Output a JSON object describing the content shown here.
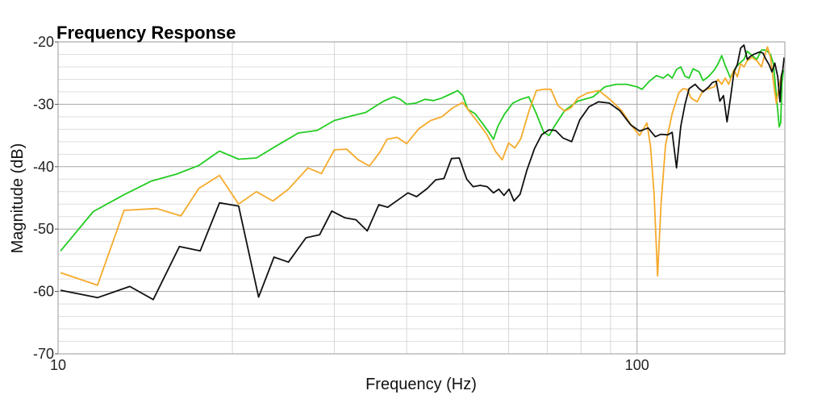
{
  "chart_data": {
    "type": "line",
    "title": "Frequency Response",
    "xlabel": "Frequency (Hz)",
    "ylabel": "Magnitude (dB)",
    "x_scale": "log",
    "xlim": [
      10,
      180
    ],
    "ylim": [
      -70,
      -20
    ],
    "x_ticks": [
      {
        "value": 10,
        "label": "10"
      },
      {
        "value": 100,
        "label": "100"
      }
    ],
    "y_ticks": [
      {
        "value": -20,
        "label": "-20"
      },
      {
        "value": -30,
        "label": "-30"
      },
      {
        "value": -40,
        "label": "-40"
      },
      {
        "value": -50,
        "label": "-50"
      },
      {
        "value": -60,
        "label": "-60"
      },
      {
        "value": -70,
        "label": "-70"
      }
    ],
    "grid": true,
    "series": [
      {
        "color": "#22cc22",
        "points": [
          [
            10.1,
            -53.5
          ],
          [
            11.5,
            -47.2
          ],
          [
            13,
            -44.5
          ],
          [
            14.5,
            -42.3
          ],
          [
            16,
            -41.2
          ],
          [
            17.5,
            -39.8
          ],
          [
            19,
            -37.5
          ],
          [
            20.5,
            -38.8
          ],
          [
            22,
            -38.6
          ],
          [
            24,
            -36.5
          ],
          [
            26,
            -34.6
          ],
          [
            28,
            -34.2
          ],
          [
            30,
            -32.6
          ],
          [
            32,
            -31.9
          ],
          [
            34,
            -31.3
          ],
          [
            35.5,
            -30.2
          ],
          [
            36.5,
            -29.5
          ],
          [
            38,
            -28.8
          ],
          [
            39,
            -29.2
          ],
          [
            40,
            -30.0
          ],
          [
            41.5,
            -29.8
          ],
          [
            43,
            -29.2
          ],
          [
            44.5,
            -29.4
          ],
          [
            46,
            -29.0
          ],
          [
            47.5,
            -28.4
          ],
          [
            49,
            -27.8
          ],
          [
            50,
            -28.6
          ],
          [
            51,
            -30.8
          ],
          [
            52.5,
            -31.5
          ],
          [
            54,
            -33.0
          ],
          [
            55.5,
            -34.5
          ],
          [
            56.5,
            -35.6
          ],
          [
            57.5,
            -33.5
          ],
          [
            59,
            -31.6
          ],
          [
            61,
            -29.8
          ],
          [
            63,
            -29.2
          ],
          [
            65,
            -28.8
          ],
          [
            67,
            -31.5
          ],
          [
            69,
            -34.5
          ],
          [
            70.5,
            -35.0
          ],
          [
            72,
            -33.5
          ],
          [
            75,
            -31.0
          ],
          [
            79,
            -29.5
          ],
          [
            84,
            -28.8
          ],
          [
            88,
            -27.2
          ],
          [
            92,
            -26.8
          ],
          [
            96,
            -26.8
          ],
          [
            100,
            -27.2
          ],
          [
            102,
            -27.6
          ],
          [
            105,
            -26.3
          ],
          [
            108,
            -25.4
          ],
          [
            111,
            -25.8
          ],
          [
            113,
            -25.2
          ],
          [
            115,
            -25.8
          ],
          [
            117,
            -24.4
          ],
          [
            119,
            -24.0
          ],
          [
            121,
            -25.5
          ],
          [
            123,
            -25.8
          ],
          [
            125,
            -24.3
          ],
          [
            128,
            -24.8
          ],
          [
            130,
            -26.2
          ],
          [
            133,
            -25.5
          ],
          [
            136,
            -24.5
          ],
          [
            138,
            -23.5
          ],
          [
            140,
            -22.2
          ],
          [
            142,
            -23.8
          ],
          [
            145,
            -25.8
          ],
          [
            147,
            -24.5
          ],
          [
            150,
            -23.5
          ],
          [
            153,
            -22.8
          ],
          [
            155,
            -21.5
          ],
          [
            158,
            -22.2
          ],
          [
            161,
            -22.8
          ],
          [
            164,
            -21.3
          ],
          [
            167,
            -21.3
          ],
          [
            170,
            -22.0
          ],
          [
            172,
            -23.5
          ],
          [
            174,
            -28.5
          ],
          [
            176,
            -33.6
          ],
          [
            177,
            -33.0
          ],
          [
            178,
            -26.5
          ],
          [
            179,
            -24.5
          ]
        ]
      },
      {
        "color": "#f5aa2a",
        "points": [
          [
            10.1,
            -57.0
          ],
          [
            11.7,
            -59.0
          ],
          [
            13,
            -47.0
          ],
          [
            14.8,
            -46.7
          ],
          [
            16.3,
            -47.9
          ],
          [
            17.5,
            -43.5
          ],
          [
            19,
            -41.4
          ],
          [
            20.5,
            -46.0
          ],
          [
            22,
            -44.0
          ],
          [
            23.5,
            -45.5
          ],
          [
            25,
            -43.6
          ],
          [
            27,
            -40.2
          ],
          [
            28.5,
            -41.1
          ],
          [
            30,
            -37.3
          ],
          [
            31.5,
            -37.2
          ],
          [
            33,
            -38.9
          ],
          [
            34.5,
            -39.9
          ],
          [
            36,
            -37.6
          ],
          [
            37,
            -35.6
          ],
          [
            38.5,
            -35.3
          ],
          [
            40,
            -36.3
          ],
          [
            42,
            -33.9
          ],
          [
            44,
            -32.6
          ],
          [
            46,
            -32.0
          ],
          [
            48,
            -30.6
          ],
          [
            50,
            -29.7
          ],
          [
            51.5,
            -31.3
          ],
          [
            53,
            -32.8
          ],
          [
            55,
            -34.8
          ],
          [
            57,
            -37.6
          ],
          [
            58.5,
            -38.9
          ],
          [
            60,
            -36.2
          ],
          [
            61.5,
            -37.0
          ],
          [
            63,
            -35.5
          ],
          [
            65,
            -31.2
          ],
          [
            67,
            -27.8
          ],
          [
            69,
            -27.6
          ],
          [
            71,
            -27.6
          ],
          [
            73,
            -30.2
          ],
          [
            75,
            -31.1
          ],
          [
            77,
            -30.5
          ],
          [
            79,
            -29.0
          ],
          [
            82,
            -28.2
          ],
          [
            86,
            -27.8
          ],
          [
            90,
            -29.3
          ],
          [
            94,
            -31.0
          ],
          [
            98,
            -33.5
          ],
          [
            101,
            -35.0
          ],
          [
            104,
            -33.0
          ],
          [
            105.5,
            -36.8
          ],
          [
            107,
            -44.5
          ],
          [
            108.5,
            -57.5
          ],
          [
            110,
            -46.0
          ],
          [
            112,
            -36.5
          ],
          [
            115,
            -31.5
          ],
          [
            118,
            -28.2
          ],
          [
            120,
            -27.5
          ],
          [
            122,
            -27.6
          ],
          [
            124,
            -29.0
          ],
          [
            127,
            -29.6
          ],
          [
            130,
            -27.8
          ],
          [
            133,
            -27.5
          ],
          [
            136,
            -27.2
          ],
          [
            138,
            -26.0
          ],
          [
            140,
            -26.8
          ],
          [
            142,
            -25.8
          ],
          [
            144,
            -26.8
          ],
          [
            147,
            -24.5
          ],
          [
            149,
            -25.6
          ],
          [
            151,
            -23.5
          ],
          [
            153,
            -24.0
          ],
          [
            155,
            -23.0
          ],
          [
            158,
            -22.5
          ],
          [
            161,
            -23.0
          ],
          [
            164,
            -24.0
          ],
          [
            166,
            -22.2
          ],
          [
            168,
            -20.8
          ],
          [
            170,
            -22.5
          ],
          [
            172,
            -26.3
          ],
          [
            174,
            -29.8
          ],
          [
            176,
            -27.0
          ],
          [
            178,
            -25.0
          ]
        ]
      },
      {
        "color": "#111111",
        "points": [
          [
            10.1,
            -59.8
          ],
          [
            11.7,
            -61.0
          ],
          [
            13.3,
            -59.2
          ],
          [
            14.6,
            -61.3
          ],
          [
            16.2,
            -52.8
          ],
          [
            17.6,
            -53.5
          ],
          [
            19,
            -45.8
          ],
          [
            20.5,
            -46.3
          ],
          [
            22.2,
            -60.9
          ],
          [
            23.6,
            -54.5
          ],
          [
            25,
            -55.3
          ],
          [
            26.8,
            -51.4
          ],
          [
            28.3,
            -50.9
          ],
          [
            29.7,
            -47.1
          ],
          [
            31.3,
            -48.2
          ],
          [
            32.7,
            -48.5
          ],
          [
            34.2,
            -50.3
          ],
          [
            35.8,
            -46.1
          ],
          [
            37.1,
            -46.5
          ],
          [
            38.7,
            -45.3
          ],
          [
            40.2,
            -44.2
          ],
          [
            41.6,
            -44.8
          ],
          [
            43.4,
            -43.5
          ],
          [
            44.9,
            -42.1
          ],
          [
            46.4,
            -41.9
          ],
          [
            47.8,
            -38.7
          ],
          [
            49.3,
            -38.6
          ],
          [
            50.8,
            -42.0
          ],
          [
            52.1,
            -43.2
          ],
          [
            53.6,
            -43.0
          ],
          [
            55.1,
            -43.2
          ],
          [
            56.5,
            -44.2
          ],
          [
            57.7,
            -43.6
          ],
          [
            58.9,
            -44.6
          ],
          [
            60.1,
            -43.6
          ],
          [
            61.3,
            -45.5
          ],
          [
            62.8,
            -44.4
          ],
          [
            64.5,
            -40.6
          ],
          [
            66.5,
            -37.1
          ],
          [
            68.4,
            -34.9
          ],
          [
            70.4,
            -34.1
          ],
          [
            72.3,
            -34.2
          ],
          [
            74.5,
            -35.4
          ],
          [
            77.1,
            -36.0
          ],
          [
            79.6,
            -32.5
          ],
          [
            82.6,
            -30.4
          ],
          [
            85.8,
            -29.6
          ],
          [
            89.5,
            -29.8
          ],
          [
            93.3,
            -31.0
          ],
          [
            97.5,
            -33.3
          ],
          [
            101,
            -34.3
          ],
          [
            104.5,
            -33.8
          ],
          [
            107.5,
            -35.2
          ],
          [
            110,
            -34.8
          ],
          [
            113,
            -34.9
          ],
          [
            115,
            -34.5
          ],
          [
            117,
            -40.2
          ],
          [
            119,
            -33.5
          ],
          [
            121,
            -30.0
          ],
          [
            123,
            -27.5
          ],
          [
            126,
            -26.8
          ],
          [
            128,
            -27.5
          ],
          [
            130,
            -28.0
          ],
          [
            133,
            -27.2
          ],
          [
            135,
            -26.5
          ],
          [
            137,
            -26.3
          ],
          [
            139,
            -29.5
          ],
          [
            141,
            -28.6
          ],
          [
            143,
            -32.8
          ],
          [
            145,
            -29.0
          ],
          [
            147,
            -24.8
          ],
          [
            149,
            -23.6
          ],
          [
            151,
            -21.0
          ],
          [
            153,
            -20.5
          ],
          [
            155,
            -22.8
          ],
          [
            157,
            -22.3
          ],
          [
            159,
            -22.0
          ],
          [
            161,
            -21.8
          ],
          [
            163,
            -21.6
          ],
          [
            165,
            -21.8
          ],
          [
            167,
            -22.8
          ],
          [
            169,
            -23.6
          ],
          [
            171,
            -24.8
          ],
          [
            173,
            -23.4
          ],
          [
            175,
            -25.6
          ],
          [
            176.5,
            -29.6
          ],
          [
            177.5,
            -25.5
          ],
          [
            178.5,
            -24.5
          ],
          [
            179.5,
            -22.5
          ]
        ]
      }
    ]
  }
}
